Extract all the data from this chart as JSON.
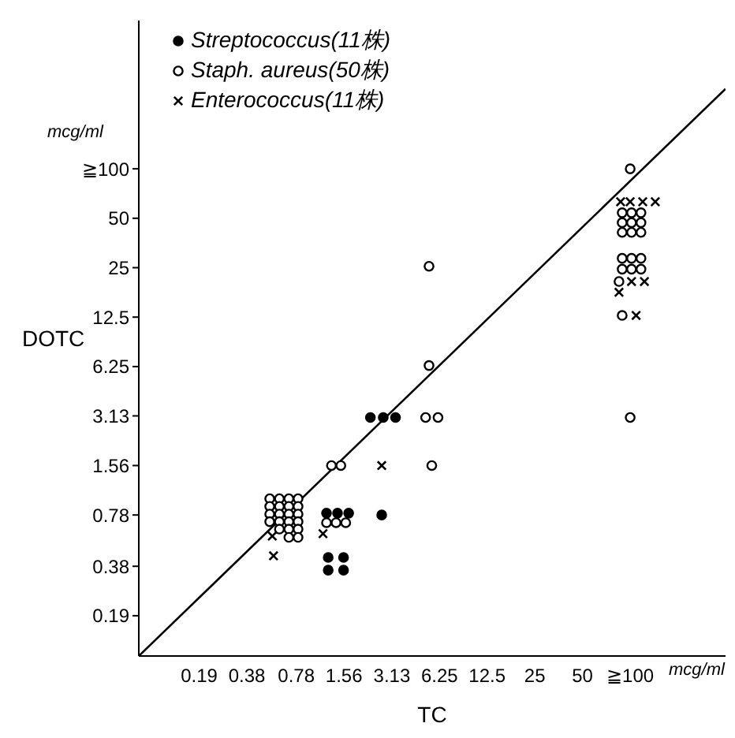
{
  "chart_data": {
    "type": "scatter",
    "xlabel": "TC",
    "ylabel": "DOTC",
    "annotations": [
      "mcg/ml",
      "mcg/ml"
    ],
    "log": "xy",
    "xlim": [
      0.079,
      400
    ],
    "ylim": [
      0.108,
      800
    ],
    "xticks": [
      0.19,
      0.38,
      0.78,
      1.56,
      3.13,
      6.25,
      12.5,
      25,
      50,
      {
        "value": 100,
        "label": "≧100"
      }
    ],
    "yticks": [
      0.19,
      0.38,
      0.78,
      1.56,
      3.13,
      6.25,
      12.5,
      25,
      50,
      {
        "value": 100,
        "label": "≧100"
      }
    ],
    "legend": "top left",
    "series": [
      {
        "name": "Streptococcus(11株)",
        "color": "#000000",
        "marker": "circle",
        "x": [
          1.21,
          1.42,
          1.67,
          1.24,
          1.55,
          1.24,
          1.55,
          2.7,
          2.29,
          2.76,
          3.3
        ],
        "values": [
          0.8,
          0.8,
          0.8,
          0.43,
          0.43,
          0.36,
          0.36,
          0.78,
          3.06,
          3.06,
          3.06
        ]
      },
      {
        "name": "Staph. aureus(50株)",
        "color": "#ffffff",
        "marker": "circle",
        "x": [
          0.53,
          0.61,
          0.7,
          0.8,
          0.53,
          0.61,
          0.7,
          0.8,
          0.53,
          0.61,
          0.7,
          0.8,
          0.53,
          0.61,
          0.7,
          0.8,
          0.61,
          0.7,
          0.8,
          0.7,
          0.8,
          1.3,
          1.49,
          1.21,
          1.39,
          1.6,
          5.37,
          5.37,
          5.11,
          6.12,
          5.59,
          100,
          89,
          102,
          117,
          89,
          102,
          117,
          89,
          102,
          117,
          89,
          102,
          117,
          89,
          102,
          117,
          85,
          89,
          100
        ],
        "values": [
          0.98,
          0.98,
          0.98,
          0.98,
          0.88,
          0.88,
          0.88,
          0.88,
          0.79,
          0.79,
          0.79,
          0.79,
          0.71,
          0.71,
          0.71,
          0.71,
          0.64,
          0.64,
          0.64,
          0.57,
          0.57,
          1.56,
          1.56,
          0.7,
          0.7,
          0.7,
          25.5,
          6.34,
          3.06,
          3.06,
          1.56,
          100,
          54,
          54,
          54,
          47,
          47,
          47,
          41,
          41,
          41,
          28.5,
          28.5,
          28.5,
          24.5,
          24.5,
          24.5,
          20.6,
          12.8,
          3.06
        ]
      },
      {
        "name": "Enterococcus(11株)",
        "color": "#000000",
        "marker": "cross",
        "x": [
          87,
          100,
          120,
          144,
          102,
          123,
          85,
          109,
          0.55,
          0.56,
          1.15,
          2.7
        ],
        "values": [
          63,
          63,
          63,
          63,
          20.6,
          20.6,
          17.7,
          12.8,
          0.58,
          0.44,
          0.6,
          1.56
        ]
      },
      {
        "type": "line",
        "color": "#000000",
        "marker": "none",
        "line_style": "solid",
        "x": [
          0.079,
          400
        ],
        "values": [
          0.108,
          307
        ]
      }
    ]
  }
}
